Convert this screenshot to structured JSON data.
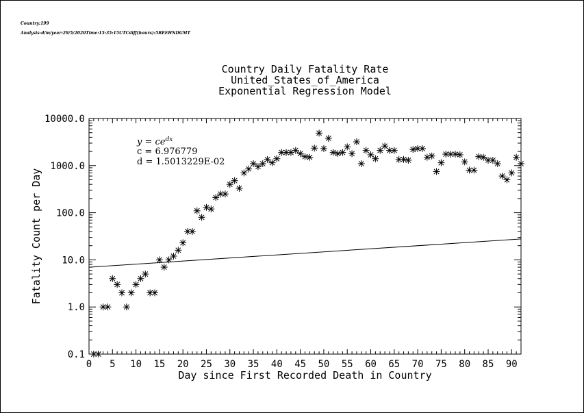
{
  "header": {
    "country": "Country:199",
    "analysis": "Analysis-d/m/year:29/5/2020Time:15:35:15UTCdiff(hours):5BEEHNDGMT"
  },
  "chart_data": {
    "type": "scatter",
    "title_lines": [
      "Country Daily Fatality Rate",
      "United_States_of_America",
      "Exponential Regression Model"
    ],
    "xlabel": "Day since First Recorded Death in Country",
    "ylabel": "Fatality Count per Day",
    "xlim": [
      0,
      92
    ],
    "ylim": [
      0.1,
      10000.0
    ],
    "yscale": "log",
    "x_ticks": [
      0,
      5,
      10,
      15,
      20,
      25,
      30,
      35,
      40,
      45,
      50,
      55,
      60,
      65,
      70,
      75,
      80,
      85,
      90
    ],
    "y_ticks": [
      {
        "value": 0.1,
        "label": "0.1"
      },
      {
        "value": 1,
        "label": "1.0"
      },
      {
        "value": 10,
        "label": "10.0"
      },
      {
        "value": 100,
        "label": "100.0"
      },
      {
        "value": 1000,
        "label": "1000.0"
      },
      {
        "value": 10000,
        "label": "10000.0"
      }
    ],
    "equation": {
      "model": "y = ce^{dx}",
      "c_label": "c = 6.976779",
      "d_label": "d = 1.5013229E-02",
      "c": 6.976779,
      "d": 0.015013229
    },
    "x": [
      1,
      2,
      3,
      4,
      5,
      6,
      7,
      8,
      9,
      10,
      11,
      12,
      13,
      14,
      15,
      16,
      17,
      18,
      19,
      20,
      21,
      22,
      23,
      24,
      25,
      26,
      27,
      28,
      29,
      30,
      31,
      32,
      33,
      34,
      35,
      36,
      37,
      38,
      39,
      40,
      41,
      42,
      43,
      44,
      45,
      46,
      47,
      48,
      49,
      50,
      51,
      52,
      53,
      54,
      55,
      56,
      57,
      58,
      59,
      60,
      61,
      62,
      63,
      64,
      65,
      66,
      67,
      68,
      69,
      70,
      71,
      72,
      73,
      74,
      75,
      76,
      77,
      78,
      79,
      80,
      81,
      82,
      83,
      84,
      85,
      86,
      87,
      88,
      89,
      90,
      91,
      92
    ],
    "y": [
      0.1,
      0.1,
      1,
      1,
      4,
      3,
      2,
      1,
      2,
      3,
      4,
      5,
      2,
      2,
      10,
      7,
      10,
      12,
      16,
      23,
      40,
      40,
      110,
      80,
      130,
      120,
      210,
      250,
      250,
      400,
      480,
      330,
      700,
      850,
      1100,
      950,
      1100,
      1350,
      1150,
      1400,
      1900,
      1900,
      1900,
      2100,
      1800,
      1550,
      1500,
      2350,
      4900,
      2300,
      3800,
      1900,
      1800,
      1900,
      2500,
      1800,
      3200,
      1100,
      2100,
      1700,
      1400,
      2100,
      2600,
      2100,
      2100,
      1350,
      1350,
      1300,
      2200,
      2300,
      2300,
      1500,
      1600,
      750,
      1150,
      1750,
      1750,
      1750,
      1700,
      1200,
      800,
      800,
      1550,
      1500,
      1300,
      1300,
      1100,
      600,
      500,
      700,
      1500,
      1100
    ]
  }
}
